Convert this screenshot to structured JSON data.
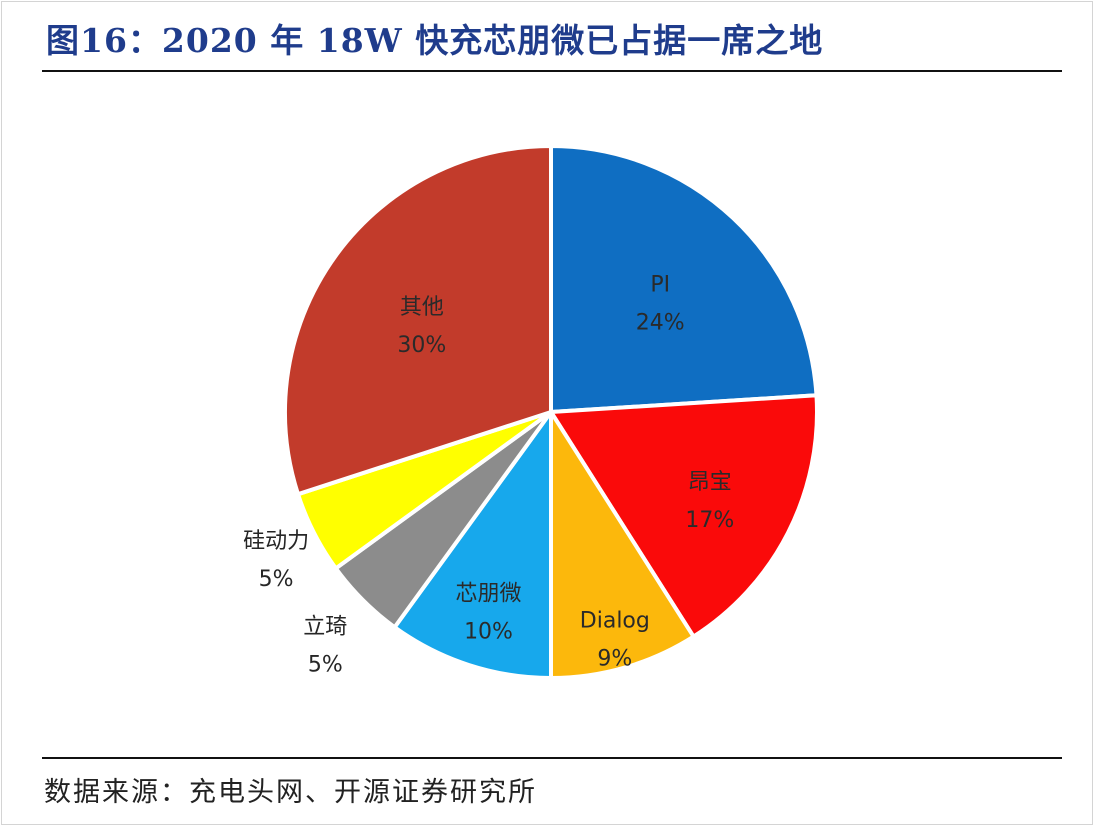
{
  "header": {
    "title": "图16：2020 年 18W 快充芯朋微已占据一席之地"
  },
  "footer": {
    "source": "数据来源：充电头网、开源证券研究所"
  },
  "chart_data": {
    "type": "pie",
    "title": "",
    "start_angle_deg": 0,
    "direction": "clockwise",
    "slices": [
      {
        "name": "PI",
        "value": 24,
        "label": "24%",
        "color": "#0f6ec2"
      },
      {
        "name": "昂宝",
        "value": 17,
        "label": "17%",
        "color": "#fa0a0a"
      },
      {
        "name": "Dialog",
        "value": 9,
        "label": "9%",
        "color": "#fcb80c"
      },
      {
        "name": "芯朋微",
        "value": 10,
        "label": "10%",
        "color": "#17a8ec"
      },
      {
        "name": "立琦",
        "value": 5,
        "label": "5%",
        "color": "#8c8c8c"
      },
      {
        "name": "硅动力",
        "value": 5,
        "label": "5%",
        "color": "#ffff00"
      },
      {
        "name": "其他",
        "value": 30,
        "label": "30%",
        "color": "#c23b2b"
      }
    ]
  }
}
